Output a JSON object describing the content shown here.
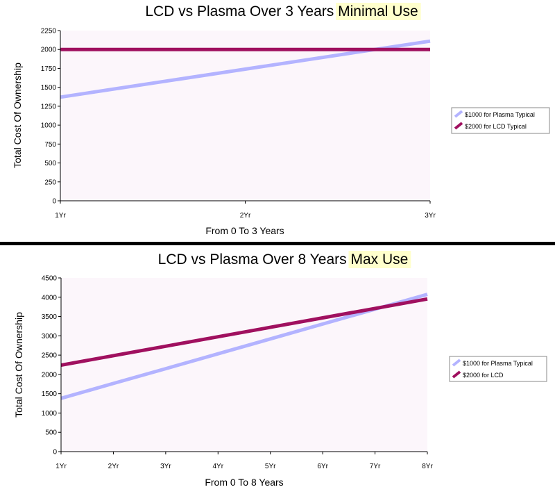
{
  "divider_color": "#000000",
  "chart_data": [
    {
      "type": "line",
      "title": "LCD vs Plasma Over 3 Years",
      "title_highlight": "Minimal Use",
      "highlight_color": "#ffffcc",
      "xlabel": "From 0 To 3 Years",
      "ylabel": "Total Cost Of Ownership",
      "x": [
        "1Yr",
        "2Yr",
        "3Yr"
      ],
      "ylim": [
        0,
        2250
      ],
      "yticks": [
        0,
        250,
        500,
        750,
        1000,
        1250,
        1500,
        1750,
        2000,
        2250
      ],
      "grid": false,
      "legend_position": "right",
      "series": [
        {
          "name": "$1000 for Plasma Typical",
          "color": "#b3b3ff",
          "values": [
            1370,
            1740,
            2110
          ]
        },
        {
          "name": "$2000 for LCD Typical",
          "color": "#a0105f",
          "values": [
            2000,
            2000,
            2000
          ]
        }
      ]
    },
    {
      "type": "line",
      "title": "LCD vs Plasma Over 8 Years",
      "title_highlight": "Max Use",
      "highlight_color": "#ffffcc",
      "xlabel": "From 0 To 8 Years",
      "ylabel": "Total Cost Of Ownership",
      "x": [
        "1Yr",
        "2Yr",
        "3Yr",
        "4Yr",
        "5Yr",
        "6Yr",
        "7Yr",
        "8Yr"
      ],
      "ylim": [
        0,
        4500
      ],
      "yticks": [
        0,
        500,
        1000,
        1500,
        2000,
        2500,
        3000,
        3500,
        4000,
        4500
      ],
      "grid": false,
      "legend_position": "right",
      "series": [
        {
          "name": "$1000 for Plasma Typical",
          "color": "#b3b3ff",
          "values": [
            1380,
            1765,
            2150,
            2535,
            2920,
            3305,
            3690,
            4075
          ]
        },
        {
          "name": "$2000 for LCD",
          "color": "#a0105f",
          "values": [
            2240,
            2485,
            2730,
            2975,
            3220,
            3465,
            3710,
            3955
          ]
        }
      ]
    }
  ]
}
